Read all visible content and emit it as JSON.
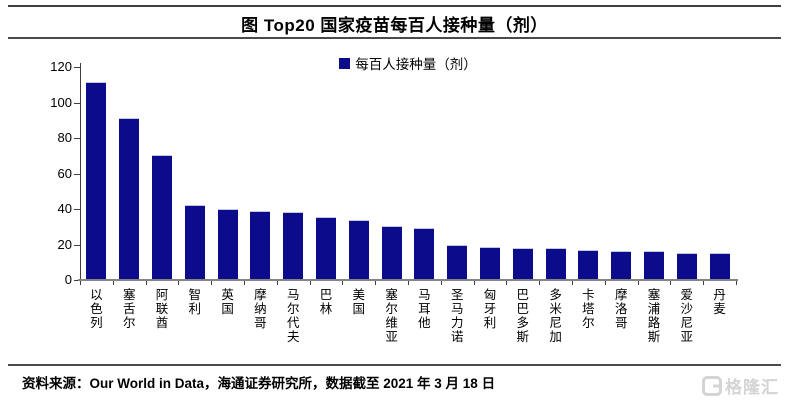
{
  "title": "图 Top20 国家疫苗每百人接种量（剂）",
  "legend_label": "每百人接种量（剂）",
  "source_note": "资料来源：Our World in Data，海通证券研究所，数据截至 2021 年 3 月 18 日",
  "logo": {
    "label": "格隆汇"
  },
  "colors": {
    "bar": "#0b0b8b",
    "axis_line": "#848484",
    "tick": "#3f3f3f",
    "text": "#000000",
    "watermark": "#d4d4d4"
  },
  "chart_data": {
    "type": "bar",
    "title": "图 Top20 国家疫苗每百人接种量（剂）",
    "legend": [
      "每百人接种量（剂）"
    ],
    "legend_position": "top-center",
    "categories": [
      "以色列",
      "塞舌尔",
      "阿联酋",
      "智利",
      "英国",
      "摩纳哥",
      "马尔代夫",
      "巴林",
      "美国",
      "塞尔维亚",
      "马耳他",
      "圣马力诺",
      "匈牙利",
      "巴巴多斯",
      "多米尼加",
      "卡塔尔",
      "摩洛哥",
      "塞浦路斯",
      "爱沙尼亚",
      "丹麦"
    ],
    "values": [
      111.5,
      91,
      70.5,
      42,
      40,
      39,
      38.5,
      35.5,
      34,
      30.5,
      29.5,
      19.5,
      18.5,
      18,
      18,
      17,
      16.5,
      16.5,
      15,
      15
    ],
    "xlabel": "",
    "ylabel": "",
    "ylim": [
      0,
      120
    ],
    "yticks": [
      0,
      20,
      40,
      60,
      80,
      100,
      120
    ],
    "grid": false
  }
}
